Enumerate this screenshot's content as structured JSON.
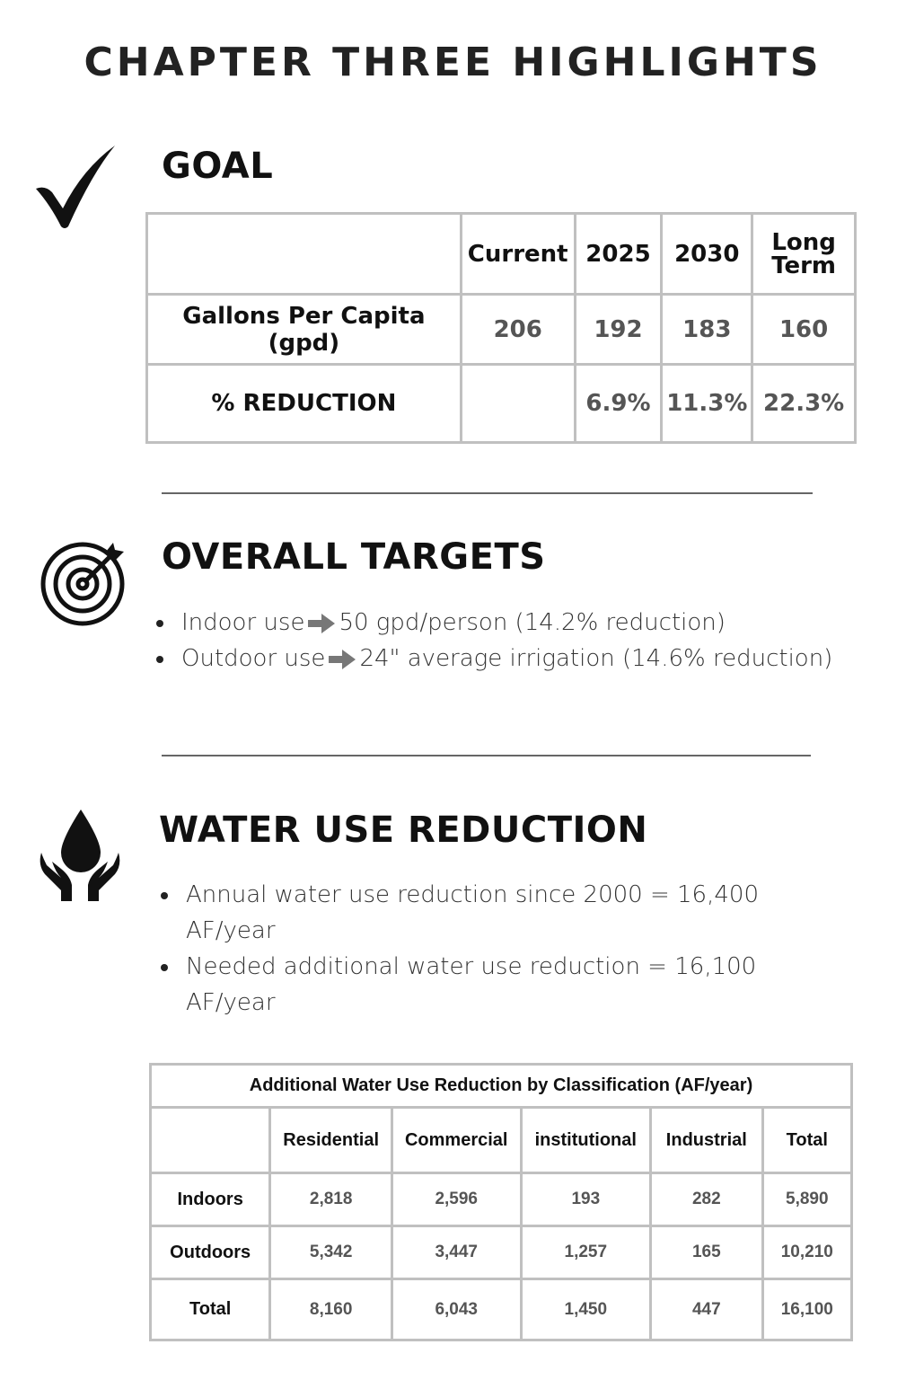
{
  "title": "CHAPTER THREE HIGHLIGHTS",
  "goal": {
    "heading": "GOAL",
    "icon": "checkmark-icon",
    "columns": [
      "",
      "Current",
      "2025",
      "2030",
      "Long Term"
    ],
    "rows": [
      {
        "label": "Gallons Per Capita (gpd)",
        "values": [
          "206",
          "192",
          "183",
          "160"
        ]
      },
      {
        "label": "% REDUCTION",
        "values": [
          "",
          "6.9%",
          "11.3%",
          "22.3%"
        ]
      }
    ]
  },
  "targets": {
    "heading": "OVERALL TARGETS",
    "icon": "target-icon",
    "items": [
      {
        "before": "Indoor use",
        "after": "50 gpd/person (14.2% reduction)"
      },
      {
        "before": "Outdoor use",
        "after": "24\" average irrigation (14.6% reduction)"
      }
    ],
    "arrow_color": "#777777"
  },
  "reduction": {
    "heading": "WATER USE REDUCTION",
    "icon": "water-drop-hands-icon",
    "items": [
      "Annual water use reduction since 2000 = 16,400 AF/year",
      "Needed additional water use reduction = 16,100 AF/year"
    ],
    "table": {
      "title": "Additional Water Use Reduction by Classification (AF/year)",
      "columns": [
        "",
        "Residential",
        "Commercial",
        "institutional",
        "Industrial",
        "Total"
      ],
      "rows": [
        {
          "label": "Indoors",
          "values": [
            "2,818",
            "2,596",
            "193",
            "282",
            "5,890"
          ]
        },
        {
          "label": "Outdoors",
          "values": [
            "5,342",
            "3,447",
            "1,257",
            "165",
            "10,210"
          ]
        },
        {
          "label": "Total",
          "values": [
            "8,160",
            "6,043",
            "1,450",
            "447",
            "16,100"
          ]
        }
      ]
    }
  }
}
